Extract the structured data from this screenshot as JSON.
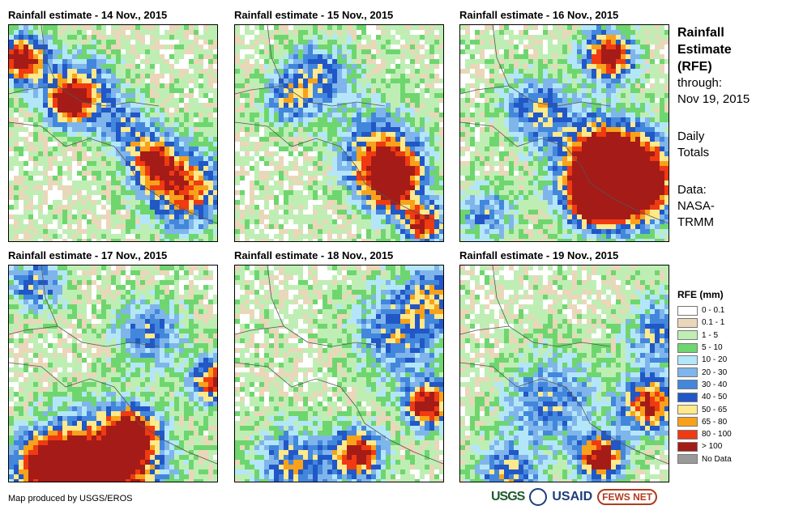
{
  "panels": [
    {
      "title": "Rainfall estimate - 14 Nov., 2015"
    },
    {
      "title": "Rainfall estimate - 15 Nov., 2015"
    },
    {
      "title": "Rainfall estimate - 16 Nov., 2015"
    },
    {
      "title": "Rainfall estimate - 17 Nov., 2015"
    },
    {
      "title": "Rainfall estimate - 18 Nov., 2015"
    },
    {
      "title": "Rainfall estimate - 19 Nov., 2015"
    }
  ],
  "side": {
    "title_lines": [
      "Rainfall",
      "Estimate",
      "(RFE)"
    ],
    "through_label": "through:",
    "through_date": "Nov 19, 2015",
    "totals_lines": [
      "Daily",
      "Totals"
    ],
    "data_lines": [
      "Data:",
      "NASA-",
      "TRMM"
    ]
  },
  "legend": {
    "title": "RFE (mm)",
    "items": [
      {
        "label": "0 - 0.1",
        "color": "#ffffff"
      },
      {
        "label": "0.1 - 1",
        "color": "#ead7b9"
      },
      {
        "label": "1 - 5",
        "color": "#bfeeb4"
      },
      {
        "label": "5 - 10",
        "color": "#6ed66e"
      },
      {
        "label": "10 - 20",
        "color": "#b4e6fa"
      },
      {
        "label": "20 - 30",
        "color": "#7fb5ea"
      },
      {
        "label": "30 - 40",
        "color": "#4287dc"
      },
      {
        "label": "40 - 50",
        "color": "#2157c6"
      },
      {
        "label": "50 - 65",
        "color": "#ffe98a"
      },
      {
        "label": "65 - 80",
        "color": "#f7a21a"
      },
      {
        "label": "80 - 100",
        "color": "#ef3a12"
      },
      {
        "label": "> 100",
        "color": "#a51b18"
      },
      {
        "label": "No Data",
        "color": "#9a9a9a"
      }
    ]
  },
  "credit": "Map produced by USGS/EROS",
  "logos": {
    "usgs": "USGS",
    "usaid": "USAID",
    "fews": "FEWS NET"
  }
}
